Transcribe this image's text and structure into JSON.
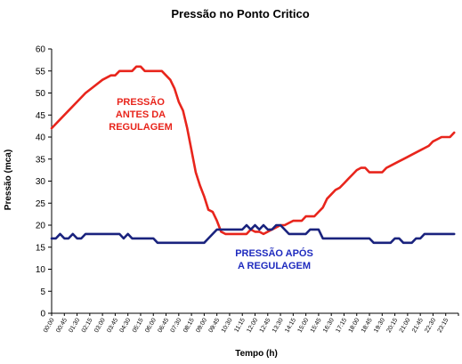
{
  "chart_data": {
    "type": "line",
    "title": "Pressão no Ponto Critico",
    "xlabel": "Tempo (h)",
    "ylabel": "Pressão (mca)",
    "ylim": [
      0,
      60
    ],
    "yticks": [
      0,
      5,
      10,
      15,
      20,
      25,
      30,
      35,
      40,
      45,
      50,
      55,
      60
    ],
    "grid": false,
    "xtick_labels": [
      "00:00",
      "00:45",
      "01:30",
      "02:15",
      "03:00",
      "03:45",
      "04:30",
      "05:15",
      "06:00",
      "06:45",
      "07:30",
      "08:15",
      "09:00",
      "09:45",
      "10:30",
      "11:15",
      "12:00",
      "12:45",
      "13:30",
      "14:15",
      "15:00",
      "15:45",
      "16:30",
      "17:15",
      "18:00",
      "18:45",
      "19:30",
      "20:15",
      "21:00",
      "21:45",
      "22:30",
      "23:15"
    ],
    "x_hours": [
      0,
      0.75,
      1.5,
      2.25,
      3,
      3.75,
      4.5,
      5.25,
      6,
      6.75,
      7.5,
      8.25,
      9,
      9.75,
      10.5,
      11.25,
      12,
      12.75,
      13.5,
      14.25,
      15,
      15.75,
      16.5,
      17.25,
      18,
      18.75,
      19.5,
      20.25,
      21,
      21.75,
      22.5,
      23.25
    ],
    "annotations": [
      {
        "lines": [
          "PRESSÃO",
          "ANTES DA",
          "REGULAGEM"
        ],
        "color": "#e8251c"
      },
      {
        "lines": [
          "PRESSÃO APÓS",
          "A REGULAGEM"
        ],
        "color": "#1f2bbf"
      }
    ],
    "series": [
      {
        "color": "#e8251c",
        "x": [
          0,
          0.5,
          1,
          1.5,
          2,
          2.5,
          3,
          3.5,
          3.75,
          4,
          4.5,
          4.75,
          5,
          5.25,
          5.5,
          5.75,
          6,
          6.5,
          6.75,
          7,
          7.25,
          7.5,
          7.75,
          8,
          8.25,
          8.5,
          8.75,
          9,
          9.25,
          9.5,
          9.75,
          10,
          10.25,
          10.5,
          11,
          11.25,
          11.5,
          11.75,
          12,
          12.25,
          12.5,
          12.75,
          13,
          13.25,
          13.5,
          13.75,
          14,
          14.25,
          14.5,
          14.75,
          15,
          15.25,
          15.5,
          15.75,
          16,
          16.25,
          16.5,
          16.75,
          17,
          17.25,
          17.5,
          17.75,
          18,
          18.25,
          18.5,
          18.75,
          19,
          19.25,
          19.5,
          19.75,
          20,
          20.25,
          20.5,
          20.75,
          21,
          21.25,
          21.5,
          21.75,
          22,
          22.25,
          22.5,
          22.75,
          23,
          23.25,
          23.5,
          23.75
        ],
        "y": [
          42,
          44,
          46,
          48,
          50,
          51.5,
          53,
          54,
          54,
          55,
          55,
          55,
          56,
          56,
          55,
          55,
          55,
          55,
          54,
          53,
          51,
          48,
          46,
          42,
          37,
          32,
          29,
          26.5,
          23.5,
          23,
          21,
          18.5,
          18,
          18,
          18,
          18,
          18,
          19,
          18.5,
          18.5,
          18,
          18.5,
          19,
          19.5,
          20,
          20,
          20.5,
          21,
          21,
          21,
          22,
          22,
          22,
          23,
          24,
          26,
          27,
          28,
          28.5,
          29.5,
          30.5,
          31.5,
          32.5,
          33,
          33,
          32,
          32,
          32,
          32,
          33,
          33.5,
          34,
          34.5,
          35,
          35.5,
          36,
          36.5,
          37,
          37.5,
          38,
          39,
          39.5,
          40,
          40,
          40,
          41
        ]
      },
      {
        "color": "#1a237e",
        "x": [
          0,
          0.25,
          0.5,
          0.75,
          1,
          1.25,
          1.5,
          1.75,
          2,
          2.5,
          3,
          3.5,
          4,
          4.25,
          4.5,
          4.75,
          5,
          5.5,
          6,
          6.25,
          6.5,
          6.75,
          7,
          7.5,
          8,
          8.5,
          9,
          9.25,
          9.5,
          9.75,
          10,
          10.5,
          11,
          11.25,
          11.5,
          11.75,
          12,
          12.25,
          12.5,
          12.75,
          13,
          13.25,
          13.5,
          13.75,
          14,
          14.5,
          15,
          15.25,
          15.5,
          15.75,
          16,
          16.5,
          17,
          17.5,
          18,
          18.25,
          18.5,
          18.75,
          19,
          19.25,
          19.5,
          19.75,
          20,
          20.25,
          20.5,
          20.75,
          21,
          21.25,
          21.5,
          21.75,
          22,
          22.5,
          23,
          23.5,
          23.75
        ],
        "y": [
          17,
          17,
          18,
          17,
          17,
          18,
          17,
          17,
          18,
          18,
          18,
          18,
          18,
          17,
          18,
          17,
          17,
          17,
          17,
          16,
          16,
          16,
          16,
          16,
          16,
          16,
          16,
          17,
          18,
          19,
          19,
          19,
          19,
          19,
          20,
          19,
          20,
          19,
          20,
          19,
          19,
          20,
          20,
          19,
          18,
          18,
          18,
          19,
          19,
          19,
          17,
          17,
          17,
          17,
          17,
          17,
          17,
          17,
          16,
          16,
          16,
          16,
          16,
          17,
          17,
          16,
          16,
          16,
          17,
          17,
          18,
          18,
          18,
          18,
          18
        ]
      }
    ]
  }
}
